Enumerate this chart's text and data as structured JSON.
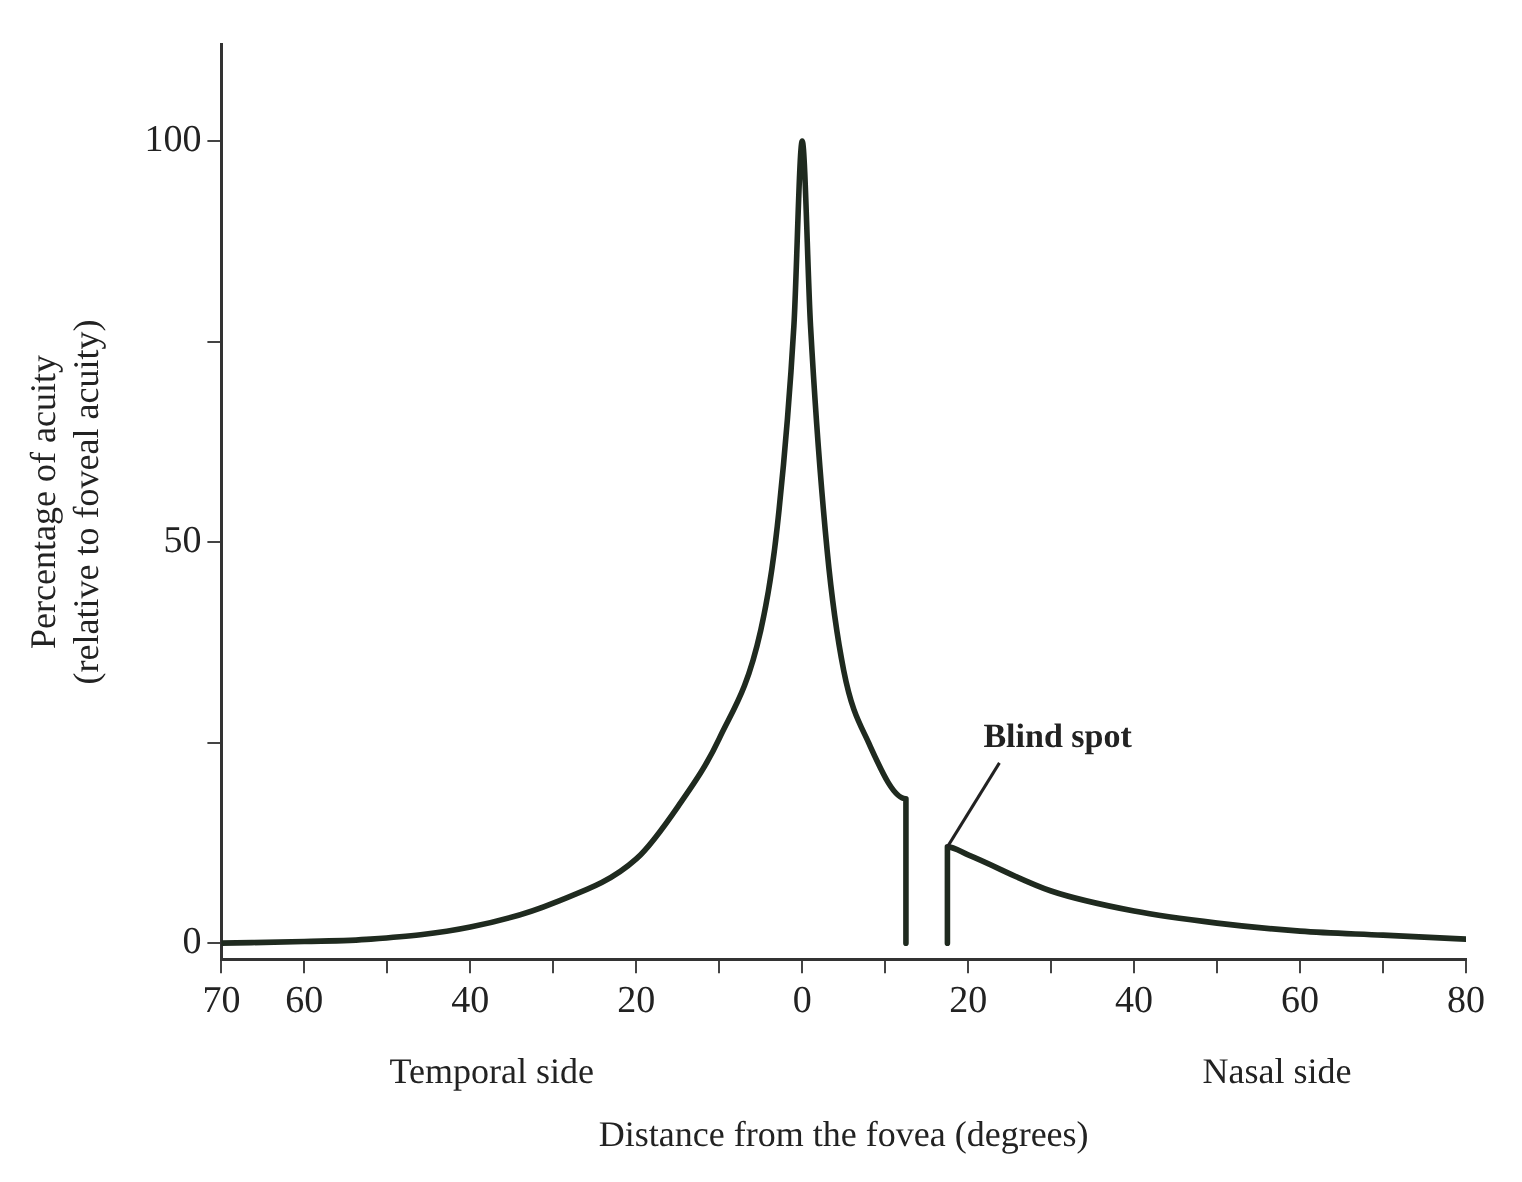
{
  "chart_data": {
    "type": "line",
    "xlabel": "Distance from the fovea (degrees)",
    "ylabel": "Percentage of acuity\n(relative to foveal acuity)",
    "series": [
      {
        "color": "#1f2a1f",
        "x": [
          -70,
          -60,
          -52,
          -40,
          -30,
          -20,
          -15,
          -10,
          -5,
          -3,
          -1,
          0,
          1,
          3,
          5,
          8,
          12.5,
          12.5,
          15,
          17.5,
          17.5,
          20,
          30,
          40,
          50,
          60,
          70,
          80
        ],
        "values": [
          0,
          0.2,
          0.5,
          2,
          5,
          10.5,
          17,
          25.5,
          39,
          52,
          77,
          100,
          77,
          49,
          34,
          25,
          18,
          0,
          null,
          0,
          12,
          11,
          6.5,
          4,
          2.5,
          1.5,
          1,
          0.5
        ]
      }
    ],
    "xlim": [
      -70,
      80
    ],
    "xticks": [
      {
        "value": -70,
        "label": "70"
      },
      {
        "value": -60,
        "label": "60"
      },
      {
        "value": -50,
        "label": null
      },
      {
        "value": -40,
        "label": "40"
      },
      {
        "value": -30,
        "label": null
      },
      {
        "value": -20,
        "label": "20"
      },
      {
        "value": -10,
        "label": null
      },
      0,
      {
        "value": 10,
        "label": null
      },
      20,
      {
        "value": 30,
        "label": null
      },
      40,
      {
        "value": 50,
        "label": null
      },
      60,
      {
        "value": 70,
        "label": null
      },
      80
    ],
    "ylim": [
      -2,
      112
    ],
    "yticks": [
      0,
      {
        "value": 25,
        "label": null
      },
      50,
      {
        "value": 75,
        "label": null
      },
      100
    ],
    "grid": false,
    "legend": false,
    "marker": "none",
    "line_style": "solid",
    "annotations": [
      {
        "text": "Blind spot",
        "x": 17.5,
        "y": 12
      },
      "Temporal side",
      "Nasal side"
    ]
  }
}
